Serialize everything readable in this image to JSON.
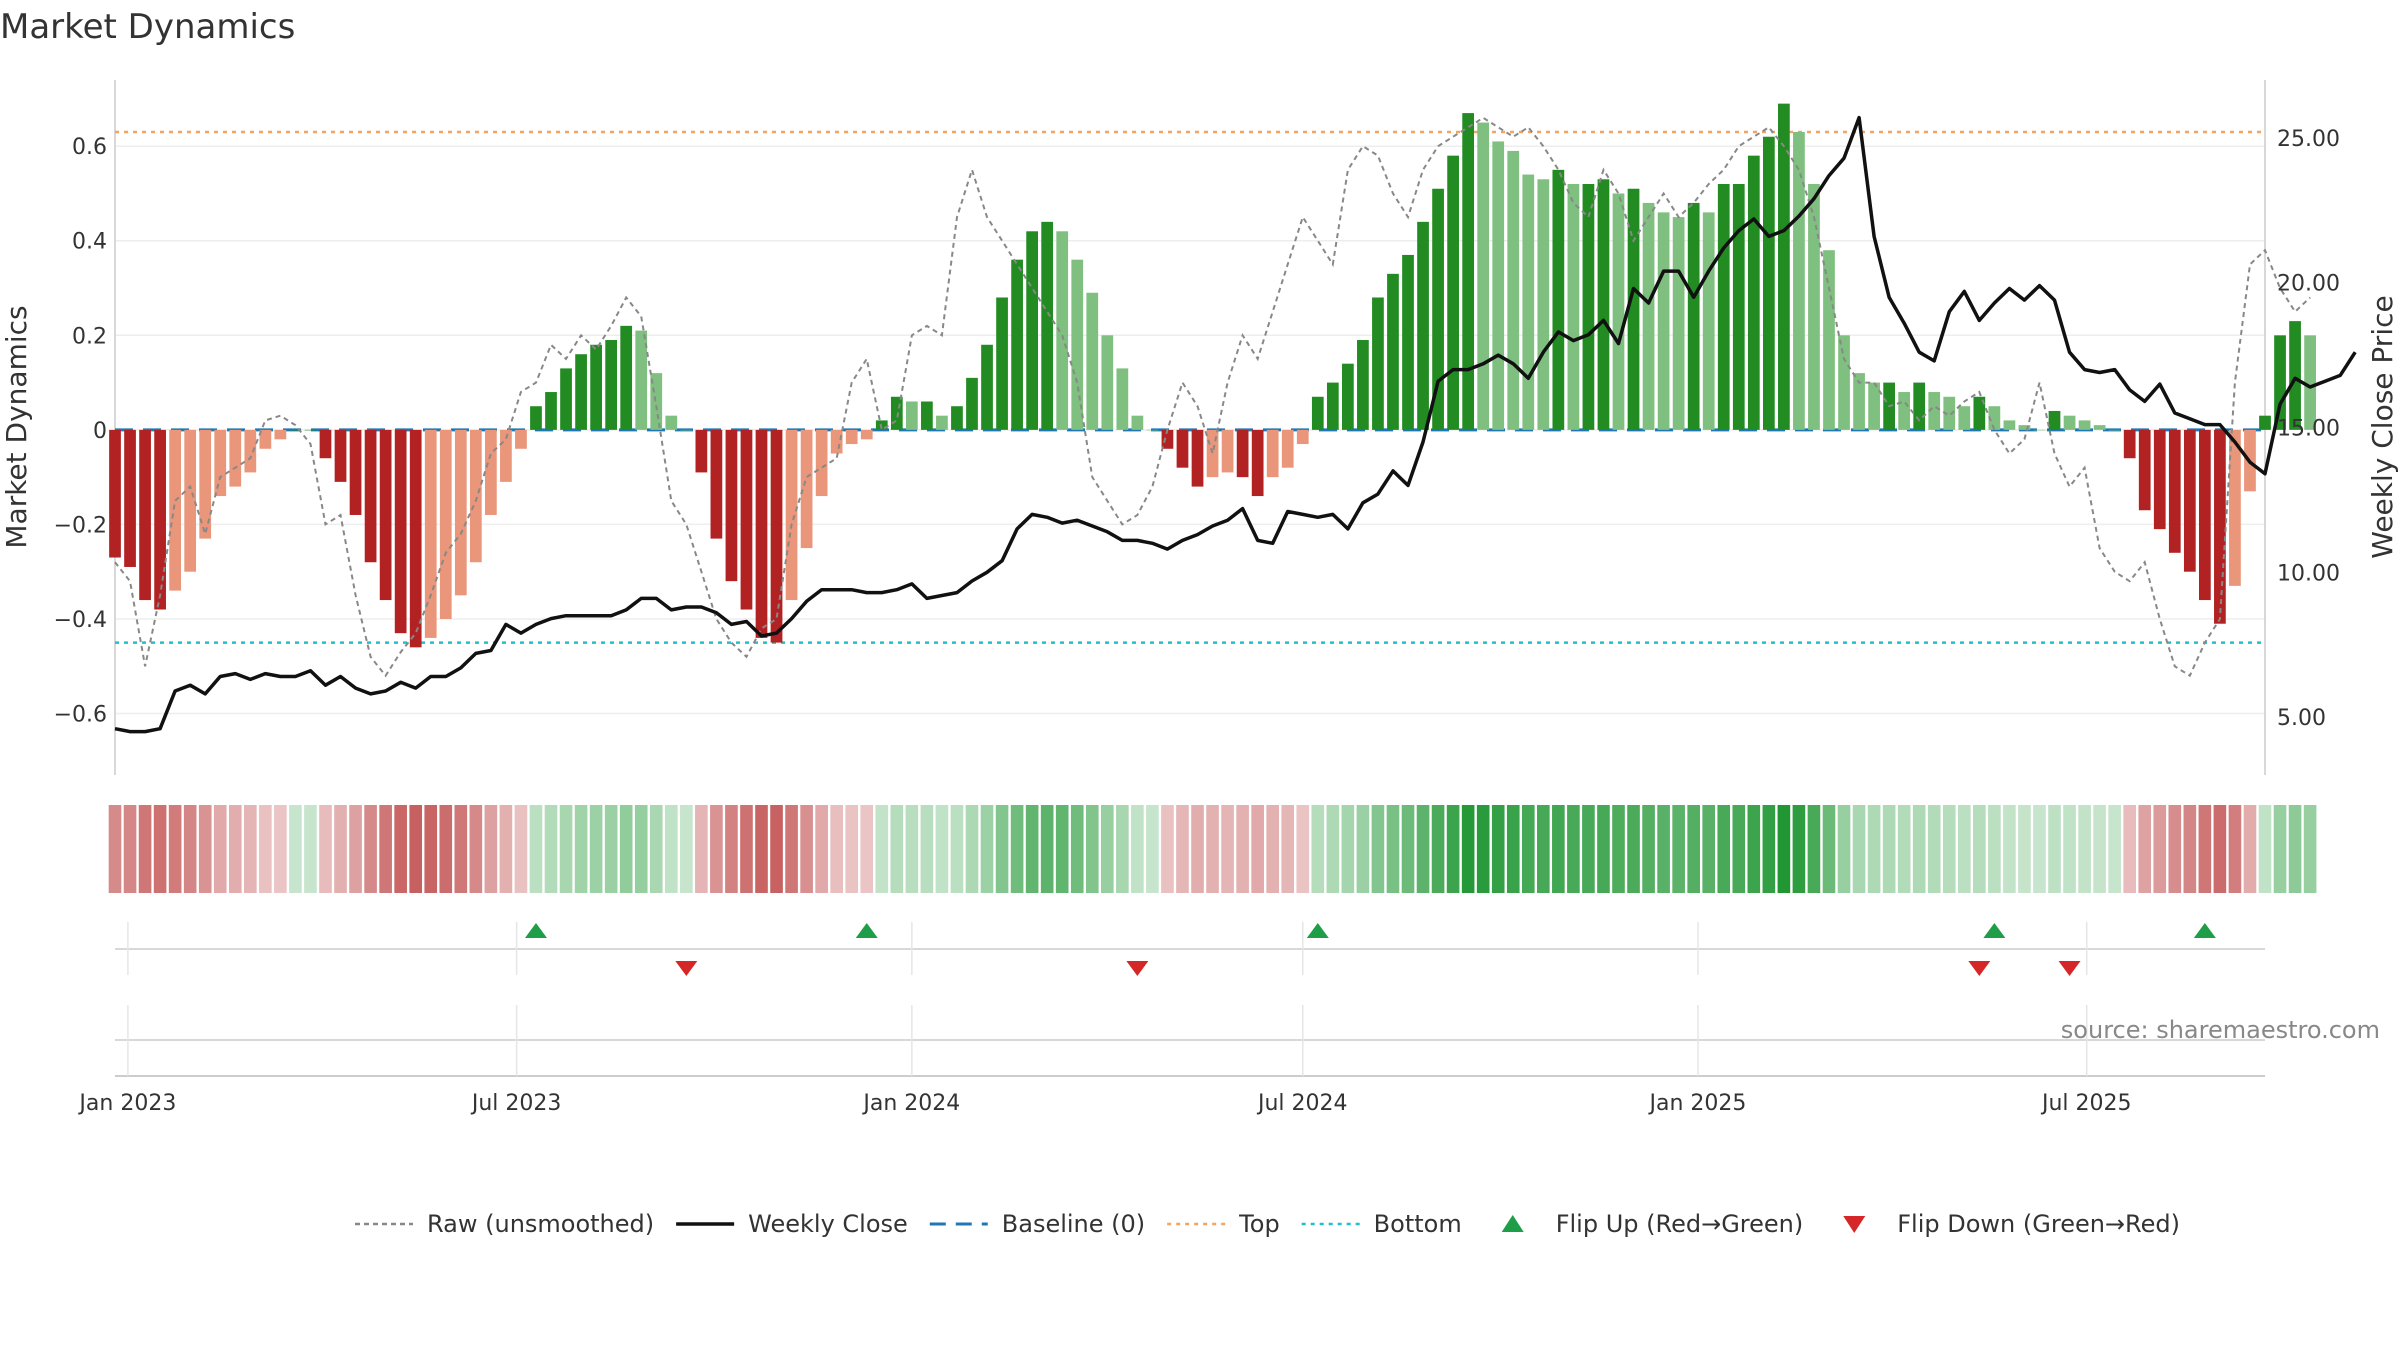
{
  "title": "Market Dynamics",
  "source": "source: sharemaestro.com",
  "colors": {
    "red_strong": "#b22222",
    "red_weak": "#e9967a",
    "green_strong": "#228b22",
    "green_weak": "#7fbf7f",
    "close": "#111111",
    "raw": "#888888",
    "baseline": "#1f77b4",
    "top": "#f4a460",
    "bottom": "#20c0c8",
    "flip_up": "#1e9e48",
    "flip_down": "#d62728"
  },
  "chart_data": {
    "type": "bar",
    "title": "Market Dynamics",
    "xlabel": "",
    "ylabel": "Market Dynamics",
    "y2label": "Weekly Close Price",
    "ylim": [
      -0.73,
      0.74
    ],
    "y2lim": [
      3.0,
      27.0
    ],
    "yticks": [
      "0.6",
      "0.4",
      "0.2",
      "0",
      "−0.2",
      "−0.4",
      "−0.6"
    ],
    "ytick_values": [
      0.6,
      0.4,
      0.2,
      0,
      -0.2,
      -0.4,
      -0.6
    ],
    "y2ticks": [
      "25.00",
      "20.00",
      "15.00",
      "10.00",
      "5.00"
    ],
    "y2tick_values": [
      25,
      20,
      15,
      10,
      5
    ],
    "x_start": "2022-12-26",
    "x_end": "2025-09-22",
    "xticks": [
      {
        "label": "Jan 2023",
        "date": "2023-01-01"
      },
      {
        "label": "Jul 2023",
        "date": "2023-07-01"
      },
      {
        "label": "Jan 2024",
        "date": "2024-01-01"
      },
      {
        "label": "Jul 2024",
        "date": "2024-07-01"
      },
      {
        "label": "Jan 2025",
        "date": "2025-01-01"
      },
      {
        "label": "Jul 2025",
        "date": "2025-07-01"
      }
    ],
    "week_start": "2022-12-26",
    "dynamics": [
      -0.27,
      -0.29,
      -0.36,
      -0.38,
      -0.34,
      -0.3,
      -0.23,
      -0.14,
      -0.12,
      -0.09,
      -0.04,
      -0.02,
      0,
      0,
      -0.06,
      -0.11,
      -0.18,
      -0.28,
      -0.36,
      -0.43,
      -0.46,
      -0.44,
      -0.4,
      -0.35,
      -0.28,
      -0.18,
      -0.11,
      -0.04,
      0.05,
      0.08,
      0.13,
      0.16,
      0.18,
      0.19,
      0.22,
      0.21,
      0.12,
      0.03,
      0,
      -0.09,
      -0.23,
      -0.32,
      -0.38,
      -0.44,
      -0.45,
      -0.36,
      -0.25,
      -0.14,
      -0.05,
      -0.03,
      -0.02,
      0.02,
      0.07,
      0.06,
      0.06,
      0.03,
      0.05,
      0.11,
      0.18,
      0.28,
      0.36,
      0.42,
      0.44,
      0.42,
      0.36,
      0.29,
      0.2,
      0.13,
      0.03,
      0,
      -0.04,
      -0.08,
      -0.12,
      -0.1,
      -0.09,
      -0.1,
      -0.14,
      -0.1,
      -0.08,
      -0.03,
      0.07,
      0.1,
      0.14,
      0.19,
      0.28,
      0.33,
      0.37,
      0.44,
      0.51,
      0.58,
      0.67,
      0.65,
      0.61,
      0.59,
      0.54,
      0.53,
      0.55,
      0.52,
      0.52,
      0.53,
      0.5,
      0.51,
      0.48,
      0.46,
      0.45,
      0.48,
      0.46,
      0.52,
      0.52,
      0.58,
      0.62,
      0.69,
      0.63,
      0.52,
      0.38,
      0.2,
      0.12,
      0.1,
      0.1,
      0.08,
      0.1,
      0.08,
      0.07,
      0.05,
      0.07,
      0.05,
      0.02,
      0.01,
      0,
      0.04,
      0.03,
      0.02,
      0.01,
      0,
      -0.06,
      -0.17,
      -0.21,
      -0.26,
      -0.3,
      -0.36,
      -0.41,
      -0.33,
      -0.13,
      0.03,
      0.2,
      0.23,
      0.2
    ],
    "close": [
      4.6,
      4.5,
      4.5,
      4.6,
      5.9,
      6.1,
      5.8,
      6.4,
      6.5,
      6.3,
      6.5,
      6.4,
      6.4,
      6.6,
      6.1,
      6.4,
      6.0,
      5.8,
      5.9,
      6.2,
      6.0,
      6.4,
      6.4,
      6.7,
      7.2,
      7.3,
      8.2,
      7.9,
      8.2,
      8.4,
      8.5,
      8.5,
      8.5,
      8.5,
      8.7,
      9.1,
      9.1,
      8.7,
      8.8,
      8.8,
      8.6,
      8.2,
      8.3,
      7.8,
      7.9,
      8.4,
      9.0,
      9.4,
      9.4,
      9.4,
      9.3,
      9.3,
      9.4,
      9.6,
      9.1,
      9.2,
      9.3,
      9.7,
      10.0,
      10.4,
      11.5,
      12.0,
      11.9,
      11.7,
      11.8,
      11.6,
      11.4,
      11.1,
      11.1,
      11.0,
      10.8,
      11.1,
      11.3,
      11.6,
      11.8,
      12.2,
      11.1,
      11.0,
      12.1,
      12.0,
      11.9,
      12.0,
      11.5,
      12.4,
      12.7,
      13.5,
      13.0,
      14.5,
      16.6,
      17.0,
      17.0,
      17.2,
      17.5,
      17.2,
      16.7,
      17.6,
      18.3,
      18.0,
      18.2,
      18.7,
      17.9,
      19.8,
      19.3,
      20.4,
      20.4,
      19.5,
      20.4,
      21.2,
      21.8,
      22.2,
      21.6,
      21.8,
      22.3,
      22.9,
      23.7,
      24.3,
      25.7,
      21.6,
      19.5,
      18.6,
      17.6,
      17.3,
      19.0,
      19.7,
      18.7,
      19.3,
      19.8,
      19.4,
      19.9,
      19.4,
      17.6,
      17.0,
      16.9,
      17.0,
      16.3,
      15.9,
      16.5,
      15.5,
      15.3,
      15.1,
      15.1,
      14.5,
      13.8,
      13.4,
      15.8,
      16.7,
      16.4,
      16.6,
      16.8,
      17.6
    ],
    "raw": [
      -0.28,
      -0.32,
      -0.5,
      -0.35,
      -0.15,
      -0.12,
      -0.22,
      -0.1,
      -0.08,
      -0.06,
      0.02,
      0.03,
      0.01,
      -0.03,
      -0.2,
      -0.18,
      -0.35,
      -0.48,
      -0.52,
      -0.47,
      -0.43,
      -0.35,
      -0.26,
      -0.22,
      -0.15,
      -0.05,
      -0.02,
      0.08,
      0.1,
      0.18,
      0.15,
      0.2,
      0.17,
      0.22,
      0.28,
      0.24,
      0.05,
      -0.15,
      -0.2,
      -0.3,
      -0.4,
      -0.45,
      -0.48,
      -0.42,
      -0.4,
      -0.2,
      -0.1,
      -0.08,
      -0.06,
      0.1,
      0.15,
      0.0,
      0.02,
      0.2,
      0.22,
      0.2,
      0.45,
      0.55,
      0.45,
      0.4,
      0.35,
      0.3,
      0.25,
      0.2,
      0.1,
      -0.1,
      -0.15,
      -0.2,
      -0.18,
      -0.12,
      0.0,
      0.1,
      0.05,
      -0.05,
      0.1,
      0.2,
      0.15,
      0.25,
      0.35,
      0.45,
      0.4,
      0.35,
      0.55,
      0.6,
      0.58,
      0.5,
      0.45,
      0.55,
      0.6,
      0.62,
      0.64,
      0.66,
      0.64,
      0.62,
      0.64,
      0.6,
      0.55,
      0.48,
      0.45,
      0.55,
      0.5,
      0.4,
      0.45,
      0.5,
      0.45,
      0.48,
      0.52,
      0.55,
      0.6,
      0.62,
      0.64,
      0.6,
      0.55,
      0.45,
      0.3,
      0.15,
      0.1,
      0.1,
      0.05,
      0.06,
      0.02,
      0.05,
      0.03,
      0.06,
      0.08,
      0.0,
      -0.05,
      -0.02,
      0.1,
      -0.05,
      -0.12,
      -0.08,
      -0.25,
      -0.3,
      -0.32,
      -0.28,
      -0.4,
      -0.5,
      -0.52,
      -0.45,
      -0.4,
      0.1,
      0.35,
      0.38,
      0.3,
      0.25,
      0.28
    ],
    "baseline": 0,
    "top_line": 0.63,
    "bottom_line": -0.45,
    "flip_up_dates": [
      "2023-07-10",
      "2023-12-11",
      "2024-07-08",
      "2025-05-19",
      "2025-08-25"
    ],
    "flip_down_dates": [
      "2023-09-18",
      "2024-04-15",
      "2025-05-12",
      "2025-06-23"
    ],
    "legend": [
      {
        "label": "Raw (unsmoothed)",
        "kind": "dashed-line",
        "color": "#888888"
      },
      {
        "label": "Weekly Close",
        "kind": "line",
        "color": "#111111"
      },
      {
        "label": "Baseline (0)",
        "kind": "dash-line",
        "color": "#1f77b4"
      },
      {
        "label": "Top",
        "kind": "dotted-line",
        "color": "#f4a460"
      },
      {
        "label": "Bottom",
        "kind": "dotted-line",
        "color": "#20c0c8"
      },
      {
        "label": "Flip Up (Red→Green)",
        "kind": "triangle-up",
        "color": "#1e9e48"
      },
      {
        "label": "Flip Down (Green→Red)",
        "kind": "triangle-down",
        "color": "#d62728"
      }
    ],
    "legend_placement": "bottom-center",
    "grid": true
  }
}
